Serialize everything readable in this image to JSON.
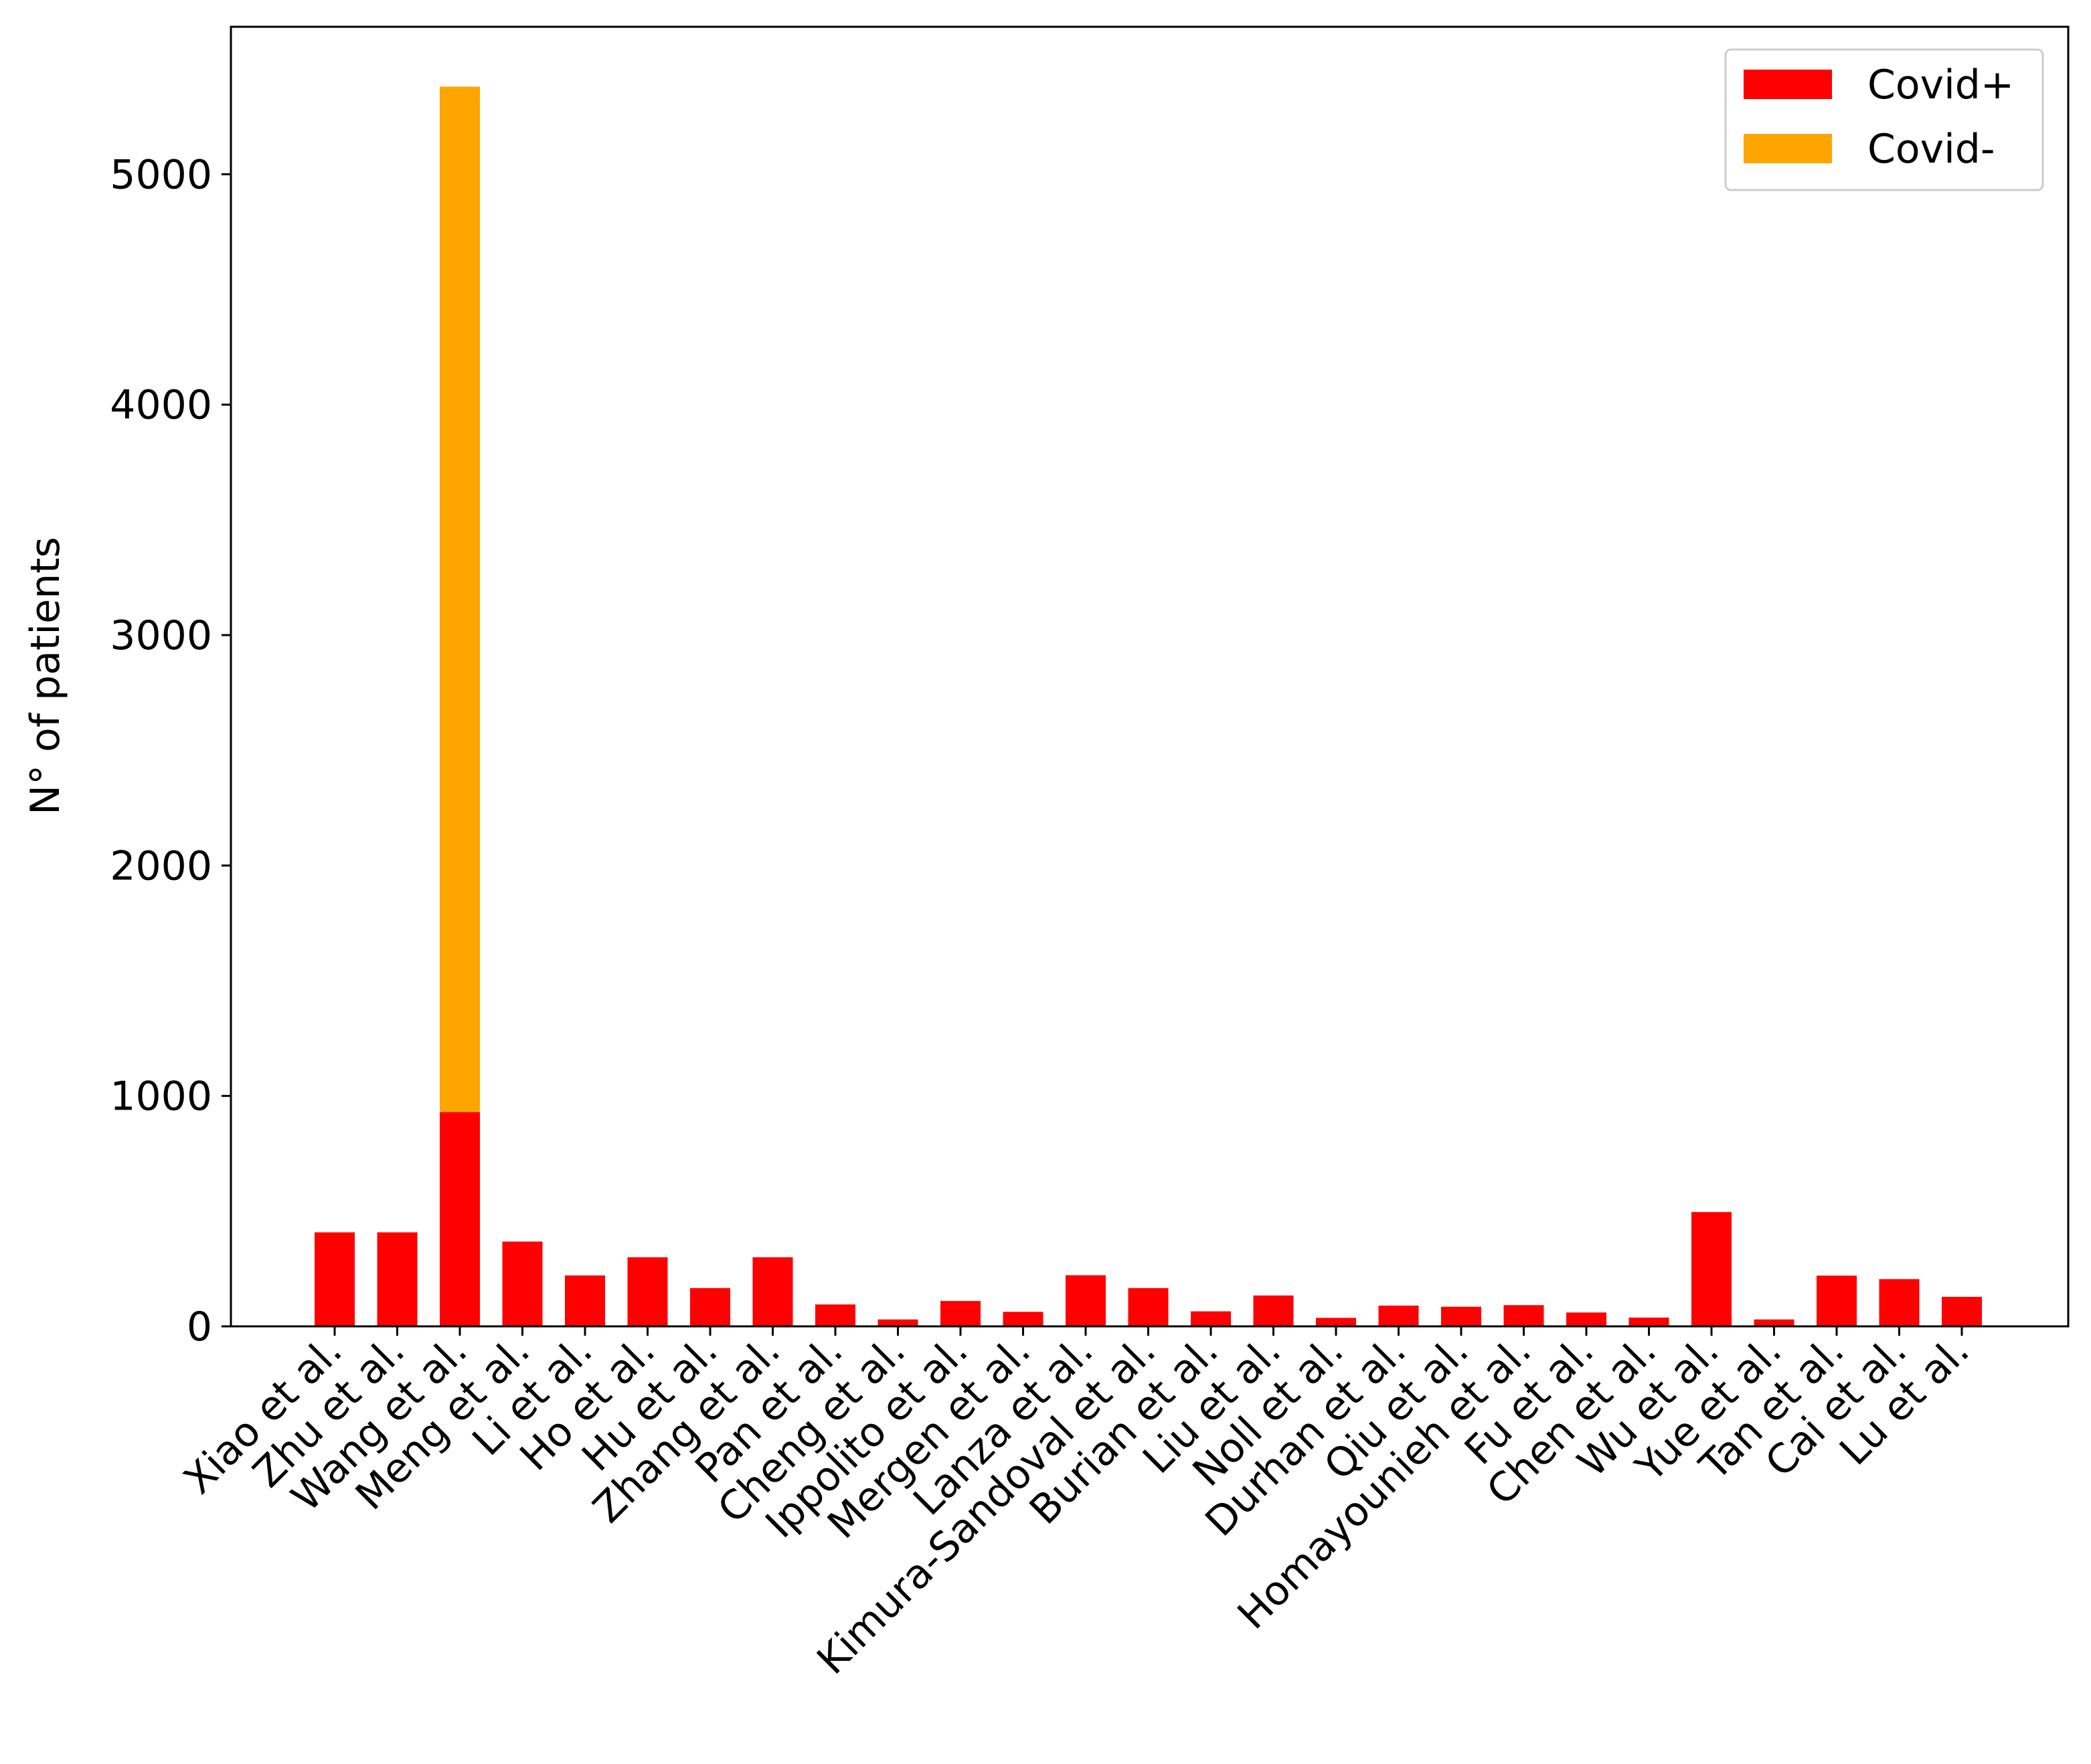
{
  "chart_data": {
    "type": "bar",
    "stacked": true,
    "title": "",
    "xlabel": "",
    "ylabel": "N° of patients",
    "ylim": [
      0,
      5640
    ],
    "yticks": [
      0,
      1000,
      2000,
      3000,
      4000,
      5000
    ],
    "grid": false,
    "legend_position": "top-right",
    "categories": [
      "Xiao et al.",
      "Zhu et al.",
      "Wang et al.",
      "Meng et al.",
      "Li et al.",
      "Ho et al.",
      "Hu et al.",
      "Zhang et al.",
      "Pan et al.",
      "Cheng et al.",
      "Ippolito et al.",
      "Mergen et al.",
      "Lanza et al.",
      "Kimura-Sandoval et al.",
      "Burian et al.",
      "Liu et al.",
      "Noll et al.",
      "Durhan et al.",
      "Qiu et al.",
      "Homayounieh et al.",
      "Fu et al.",
      "Chen et al.",
      "Wu et al.",
      "Yue et al.",
      "Tan et al.",
      "Cai et al.",
      "Lu et al."
    ],
    "series": [
      {
        "name": "Covid+",
        "color": "#ff0000",
        "values": [
          408,
          408,
          930,
          368,
          221,
          300,
          166,
          300,
          95,
          30,
          110,
          63,
          222,
          166,
          65,
          134,
          37,
          90,
          85,
          92,
          60,
          38,
          496,
          30,
          220,
          205,
          128
        ]
      },
      {
        "name": "Covid-",
        "color": "#ffa500",
        "values": [
          0,
          0,
          4450,
          0,
          0,
          0,
          0,
          0,
          0,
          0,
          0,
          0,
          0,
          0,
          0,
          0,
          0,
          0,
          0,
          0,
          0,
          0,
          0,
          0,
          0,
          0,
          0
        ]
      }
    ]
  }
}
